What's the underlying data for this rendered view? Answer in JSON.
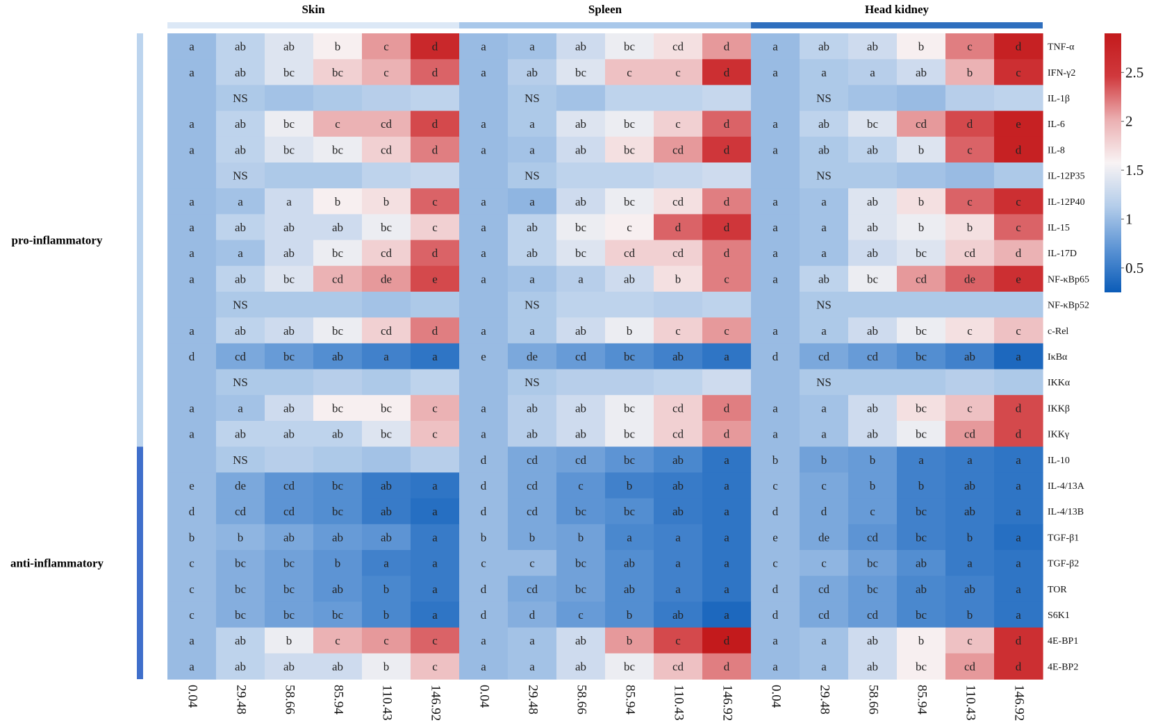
{
  "chart_data": {
    "type": "heatmap",
    "groups": [
      "Skin",
      "Spleen",
      "Head kidney"
    ],
    "group_colors": [
      "#dce8f6",
      "#a9c8ea",
      "#2f6fbe"
    ],
    "x_labels": [
      "0.04",
      "29.48",
      "58.66",
      "85.94",
      "110.43",
      "146.92"
    ],
    "rows": [
      "TNF-α",
      "IFN-γ2",
      "IL-1β",
      "IL-6",
      "IL-8",
      "IL-12P35",
      "IL-12P40",
      "IL-15",
      "IL-17D",
      "NF-κBp65",
      "NF-κBp52",
      "c-Rel",
      "IκBα",
      "IKKα",
      "IKKβ",
      "IKKγ",
      "IL-10",
      "IL-4/13A",
      "IL-4/13B",
      "TGF-β1",
      "TGF-β2",
      "TOR",
      "S6K1",
      "4E-BP1",
      "4E-BP2"
    ],
    "categories": [
      {
        "label": "pro-inflammatory",
        "start_row": 0,
        "end_row": 15,
        "color": "#bcd4ee"
      },
      {
        "label": "anti-inflammatory",
        "start_row": 16,
        "end_row": 24,
        "color": "#3f6fcb"
      }
    ],
    "colorbar": {
      "min": 0.25,
      "max": 2.9,
      "ticks": [
        0.5,
        1,
        1.5,
        2,
        2.5
      ],
      "colors": [
        "#0b5cb8",
        "#5b93d4",
        "#b4cdea",
        "#f8f3f4",
        "#ebafb1",
        "#d0393d",
        "#c31a1c"
      ]
    },
    "values": [
      [
        1.0,
        1.2,
        1.4,
        1.6,
        2.1,
        2.7,
        1.0,
        1.05,
        1.3,
        1.5,
        1.7,
        2.1,
        1.0,
        1.2,
        1.3,
        1.6,
        2.2,
        2.8
      ],
      [
        1.0,
        1.2,
        1.4,
        1.8,
        2.0,
        2.3,
        1.0,
        1.15,
        1.4,
        1.9,
        1.9,
        2.6,
        1.0,
        1.1,
        1.15,
        1.3,
        2.0,
        2.6
      ],
      [
        1.0,
        1.1,
        1.05,
        1.1,
        1.15,
        1.2,
        1.0,
        1.1,
        1.05,
        1.2,
        1.2,
        1.25,
        1.0,
        1.1,
        1.05,
        1.0,
        1.15,
        1.2
      ],
      [
        1.0,
        1.2,
        1.5,
        2.0,
        2.0,
        2.4,
        1.0,
        1.1,
        1.4,
        1.5,
        1.8,
        2.3,
        1.0,
        1.2,
        1.4,
        2.1,
        2.4,
        2.8
      ],
      [
        1.0,
        1.2,
        1.4,
        1.5,
        1.8,
        2.2,
        1.0,
        1.05,
        1.3,
        1.7,
        2.1,
        2.5,
        1.0,
        1.1,
        1.2,
        1.4,
        2.3,
        2.8
      ],
      [
        1.0,
        1.15,
        1.1,
        1.1,
        1.2,
        1.25,
        1.0,
        1.1,
        1.2,
        1.2,
        1.25,
        1.3,
        1.0,
        1.1,
        1.1,
        1.05,
        1.0,
        1.1
      ],
      [
        1.0,
        1.05,
        1.3,
        1.6,
        1.7,
        2.3,
        1.0,
        0.95,
        1.3,
        1.5,
        1.7,
        2.2,
        1.0,
        1.05,
        1.4,
        1.7,
        2.3,
        2.6
      ],
      [
        1.0,
        1.2,
        1.3,
        1.3,
        1.5,
        1.8,
        1.0,
        1.2,
        1.5,
        1.6,
        2.3,
        2.5,
        1.0,
        1.05,
        1.4,
        1.5,
        1.7,
        2.3
      ],
      [
        1.0,
        1.05,
        1.3,
        1.5,
        1.8,
        2.3,
        1.0,
        1.2,
        1.4,
        1.8,
        1.8,
        2.2,
        1.0,
        1.05,
        1.3,
        1.4,
        1.8,
        2.0
      ],
      [
        1.0,
        1.2,
        1.4,
        2.0,
        2.1,
        2.4,
        1.0,
        1.05,
        1.15,
        1.3,
        1.7,
        2.2,
        1.0,
        1.2,
        1.5,
        2.1,
        2.3,
        2.6
      ],
      [
        1.0,
        1.1,
        1.1,
        1.1,
        1.05,
        1.1,
        1.0,
        1.1,
        1.2,
        1.2,
        1.15,
        1.2,
        1.0,
        1.1,
        1.1,
        1.1,
        1.1,
        1.1
      ],
      [
        1.0,
        1.2,
        1.3,
        1.5,
        1.8,
        2.2,
        1.0,
        1.1,
        1.3,
        1.5,
        1.8,
        2.1,
        1.0,
        1.1,
        1.3,
        1.5,
        1.7,
        1.9
      ],
      [
        1.0,
        0.85,
        0.75,
        0.65,
        0.55,
        0.45,
        1.0,
        0.85,
        0.75,
        0.65,
        0.55,
        0.45,
        1.0,
        0.85,
        0.75,
        0.65,
        0.55,
        0.35
      ],
      [
        1.0,
        1.1,
        1.1,
        1.15,
        1.1,
        1.2,
        1.0,
        1.1,
        1.15,
        1.15,
        1.2,
        1.3,
        1.0,
        1.1,
        1.1,
        1.1,
        1.15,
        1.1
      ],
      [
        1.0,
        1.05,
        1.3,
        1.6,
        1.6,
        2.0,
        1.0,
        1.15,
        1.3,
        1.5,
        1.8,
        2.2,
        1.0,
        1.05,
        1.3,
        1.7,
        1.9,
        2.4
      ],
      [
        1.0,
        1.2,
        1.2,
        1.2,
        1.4,
        1.9,
        1.0,
        1.15,
        1.3,
        1.5,
        1.8,
        2.1,
        1.0,
        1.05,
        1.3,
        1.5,
        2.1,
        2.4
      ],
      [
        1.0,
        1.1,
        1.15,
        1.1,
        1.05,
        1.15,
        1.0,
        0.85,
        0.8,
        0.7,
        0.6,
        0.45,
        1.0,
        0.8,
        0.75,
        0.55,
        0.5,
        0.45
      ],
      [
        1.0,
        0.85,
        0.7,
        0.65,
        0.5,
        0.45,
        1.0,
        0.85,
        0.7,
        0.55,
        0.5,
        0.45,
        1.0,
        0.85,
        0.75,
        0.55,
        0.5,
        0.45
      ],
      [
        1.0,
        0.85,
        0.7,
        0.65,
        0.5,
        0.4,
        1.0,
        0.85,
        0.7,
        0.65,
        0.5,
        0.45,
        1.0,
        0.85,
        0.75,
        0.55,
        0.5,
        0.45
      ],
      [
        1.0,
        0.95,
        0.85,
        0.75,
        0.7,
        0.5,
        1.0,
        0.85,
        0.8,
        0.6,
        0.55,
        0.45,
        1.0,
        0.85,
        0.7,
        0.55,
        0.5,
        0.4
      ],
      [
        1.0,
        0.9,
        0.8,
        0.7,
        0.55,
        0.5,
        1.0,
        1.0,
        0.8,
        0.65,
        0.55,
        0.45,
        1.0,
        0.95,
        0.8,
        0.65,
        0.5,
        0.45
      ],
      [
        1.0,
        0.9,
        0.8,
        0.7,
        0.6,
        0.5,
        1.0,
        0.85,
        0.8,
        0.65,
        0.55,
        0.45,
        1.0,
        0.85,
        0.75,
        0.6,
        0.55,
        0.45
      ],
      [
        1.0,
        0.9,
        0.8,
        0.75,
        0.6,
        0.45,
        1.0,
        0.9,
        0.75,
        0.65,
        0.5,
        0.35,
        1.0,
        0.85,
        0.75,
        0.6,
        0.55,
        0.45
      ],
      [
        1.0,
        1.2,
        1.5,
        2.0,
        2.1,
        2.3,
        1.0,
        1.05,
        1.3,
        2.1,
        2.4,
        3.0,
        1.0,
        1.05,
        1.3,
        1.6,
        1.9,
        2.6
      ],
      [
        1.0,
        1.2,
        1.3,
        1.3,
        1.5,
        1.9,
        1.0,
        1.05,
        1.3,
        1.5,
        1.9,
        2.2,
        1.0,
        1.05,
        1.3,
        1.6,
        2.1,
        2.6
      ]
    ],
    "cell_labels": [
      [
        "a",
        "ab",
        "ab",
        "b",
        "c",
        "d",
        "a",
        "a",
        "ab",
        "bc",
        "cd",
        "d",
        "a",
        "ab",
        "ab",
        "b",
        "c",
        "d"
      ],
      [
        "a",
        "ab",
        "bc",
        "bc",
        "c",
        "d",
        "a",
        "ab",
        "bc",
        "c",
        "c",
        "d",
        "a",
        "a",
        "a",
        "ab",
        "b",
        "c"
      ],
      [
        "",
        "NS",
        "",
        "",
        "",
        "",
        "",
        "NS",
        "",
        "",
        "",
        "",
        "",
        "NS",
        "",
        "",
        "",
        ""
      ],
      [
        "a",
        "ab",
        "bc",
        "c",
        "cd",
        "d",
        "a",
        "a",
        "ab",
        "bc",
        "c",
        "d",
        "a",
        "ab",
        "bc",
        "cd",
        "d",
        "e"
      ],
      [
        "a",
        "ab",
        "bc",
        "bc",
        "cd",
        "d",
        "a",
        "a",
        "ab",
        "bc",
        "cd",
        "d",
        "a",
        "ab",
        "ab",
        "b",
        "c",
        "d"
      ],
      [
        "",
        "NS",
        "",
        "",
        "",
        "",
        "",
        "NS",
        "",
        "",
        "",
        "",
        "",
        "NS",
        "",
        "",
        "",
        ""
      ],
      [
        "a",
        "a",
        "a",
        "b",
        "b",
        "c",
        "a",
        "a",
        "ab",
        "bc",
        "cd",
        "d",
        "a",
        "a",
        "ab",
        "b",
        "c",
        "c"
      ],
      [
        "a",
        "ab",
        "ab",
        "ab",
        "bc",
        "c",
        "a",
        "ab",
        "bc",
        "c",
        "d",
        "d",
        "a",
        "a",
        "ab",
        "b",
        "b",
        "c"
      ],
      [
        "a",
        "a",
        "ab",
        "bc",
        "cd",
        "d",
        "a",
        "ab",
        "bc",
        "cd",
        "cd",
        "d",
        "a",
        "a",
        "ab",
        "bc",
        "cd",
        "d"
      ],
      [
        "a",
        "ab",
        "bc",
        "cd",
        "de",
        "e",
        "a",
        "a",
        "a",
        "ab",
        "b",
        "c",
        "a",
        "ab",
        "bc",
        "cd",
        "de",
        "e"
      ],
      [
        "",
        "NS",
        "",
        "",
        "",
        "",
        "",
        "NS",
        "",
        "",
        "",
        "",
        "",
        "NS",
        "",
        "",
        "",
        ""
      ],
      [
        "a",
        "ab",
        "ab",
        "bc",
        "cd",
        "d",
        "a",
        "a",
        "ab",
        "b",
        "c",
        "c",
        "a",
        "a",
        "ab",
        "bc",
        "c",
        "c"
      ],
      [
        "d",
        "cd",
        "bc",
        "ab",
        "a",
        "a",
        "e",
        "de",
        "cd",
        "bc",
        "ab",
        "a",
        "d",
        "cd",
        "cd",
        "bc",
        "ab",
        "a"
      ],
      [
        "",
        "NS",
        "",
        "",
        "",
        "",
        "",
        "NS",
        "",
        "",
        "",
        "",
        "",
        "NS",
        "",
        "",
        "",
        ""
      ],
      [
        "a",
        "a",
        "ab",
        "bc",
        "bc",
        "c",
        "a",
        "ab",
        "ab",
        "bc",
        "cd",
        "d",
        "a",
        "a",
        "ab",
        "bc",
        "c",
        "d"
      ],
      [
        "a",
        "ab",
        "ab",
        "ab",
        "bc",
        "c",
        "a",
        "ab",
        "ab",
        "bc",
        "cd",
        "d",
        "a",
        "a",
        "ab",
        "bc",
        "cd",
        "d"
      ],
      [
        "",
        "NS",
        "",
        "",
        "",
        "",
        "d",
        "cd",
        "cd",
        "bc",
        "ab",
        "a",
        "b",
        "b",
        "b",
        "a",
        "a",
        "a"
      ],
      [
        "e",
        "de",
        "cd",
        "bc",
        "ab",
        "a",
        "d",
        "cd",
        "c",
        "b",
        "ab",
        "a",
        "c",
        "c",
        "b",
        "b",
        "ab",
        "a"
      ],
      [
        "d",
        "cd",
        "cd",
        "bc",
        "ab",
        "a",
        "d",
        "cd",
        "bc",
        "bc",
        "ab",
        "a",
        "d",
        "d",
        "c",
        "bc",
        "ab",
        "a"
      ],
      [
        "b",
        "b",
        "ab",
        "ab",
        "ab",
        "a",
        "b",
        "b",
        "b",
        "a",
        "a",
        "a",
        "e",
        "de",
        "cd",
        "bc",
        "b",
        "a"
      ],
      [
        "c",
        "bc",
        "bc",
        "b",
        "a",
        "a",
        "c",
        "c",
        "bc",
        "ab",
        "a",
        "a",
        "c",
        "c",
        "bc",
        "ab",
        "a",
        "a"
      ],
      [
        "c",
        "bc",
        "bc",
        "ab",
        "b",
        "a",
        "d",
        "cd",
        "bc",
        "ab",
        "a",
        "a",
        "d",
        "cd",
        "bc",
        "ab",
        "ab",
        "a"
      ],
      [
        "c",
        "bc",
        "bc",
        "bc",
        "b",
        "a",
        "d",
        "d",
        "c",
        "b",
        "ab",
        "a",
        "d",
        "cd",
        "cd",
        "bc",
        "b",
        "a"
      ],
      [
        "a",
        "ab",
        "b",
        "c",
        "c",
        "c",
        "a",
        "a",
        "ab",
        "b",
        "c",
        "d",
        "a",
        "a",
        "ab",
        "b",
        "c",
        "d"
      ],
      [
        "a",
        "ab",
        "ab",
        "ab",
        "b",
        "c",
        "a",
        "a",
        "ab",
        "bc",
        "cd",
        "d",
        "a",
        "a",
        "ab",
        "bc",
        "cd",
        "d"
      ]
    ]
  }
}
